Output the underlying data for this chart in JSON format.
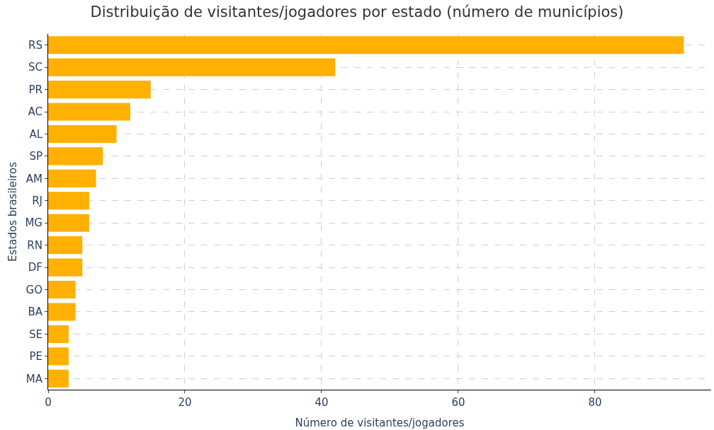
{
  "chart_data": {
    "type": "bar",
    "orientation": "horizontal",
    "title": "Distribuição de visitantes/jogadores por estado (número de municípios)",
    "xlabel": "Número de visitantes/jogadores",
    "ylabel": "Estados brasileiros",
    "categories": [
      "RS",
      "SC",
      "PR",
      "AC",
      "AL",
      "SP",
      "AM",
      "RJ",
      "MG",
      "RN",
      "DF",
      "GO",
      "BA",
      "SE",
      "PE",
      "MA"
    ],
    "values": [
      93,
      42,
      15,
      12,
      10,
      8,
      7,
      6,
      6,
      5,
      5,
      4,
      4,
      3,
      3,
      3
    ],
    "color": "#ffb000",
    "xlim": [
      0,
      97
    ],
    "xticks": [
      0,
      20,
      40,
      60,
      80
    ],
    "grid": true,
    "legend": false
  }
}
